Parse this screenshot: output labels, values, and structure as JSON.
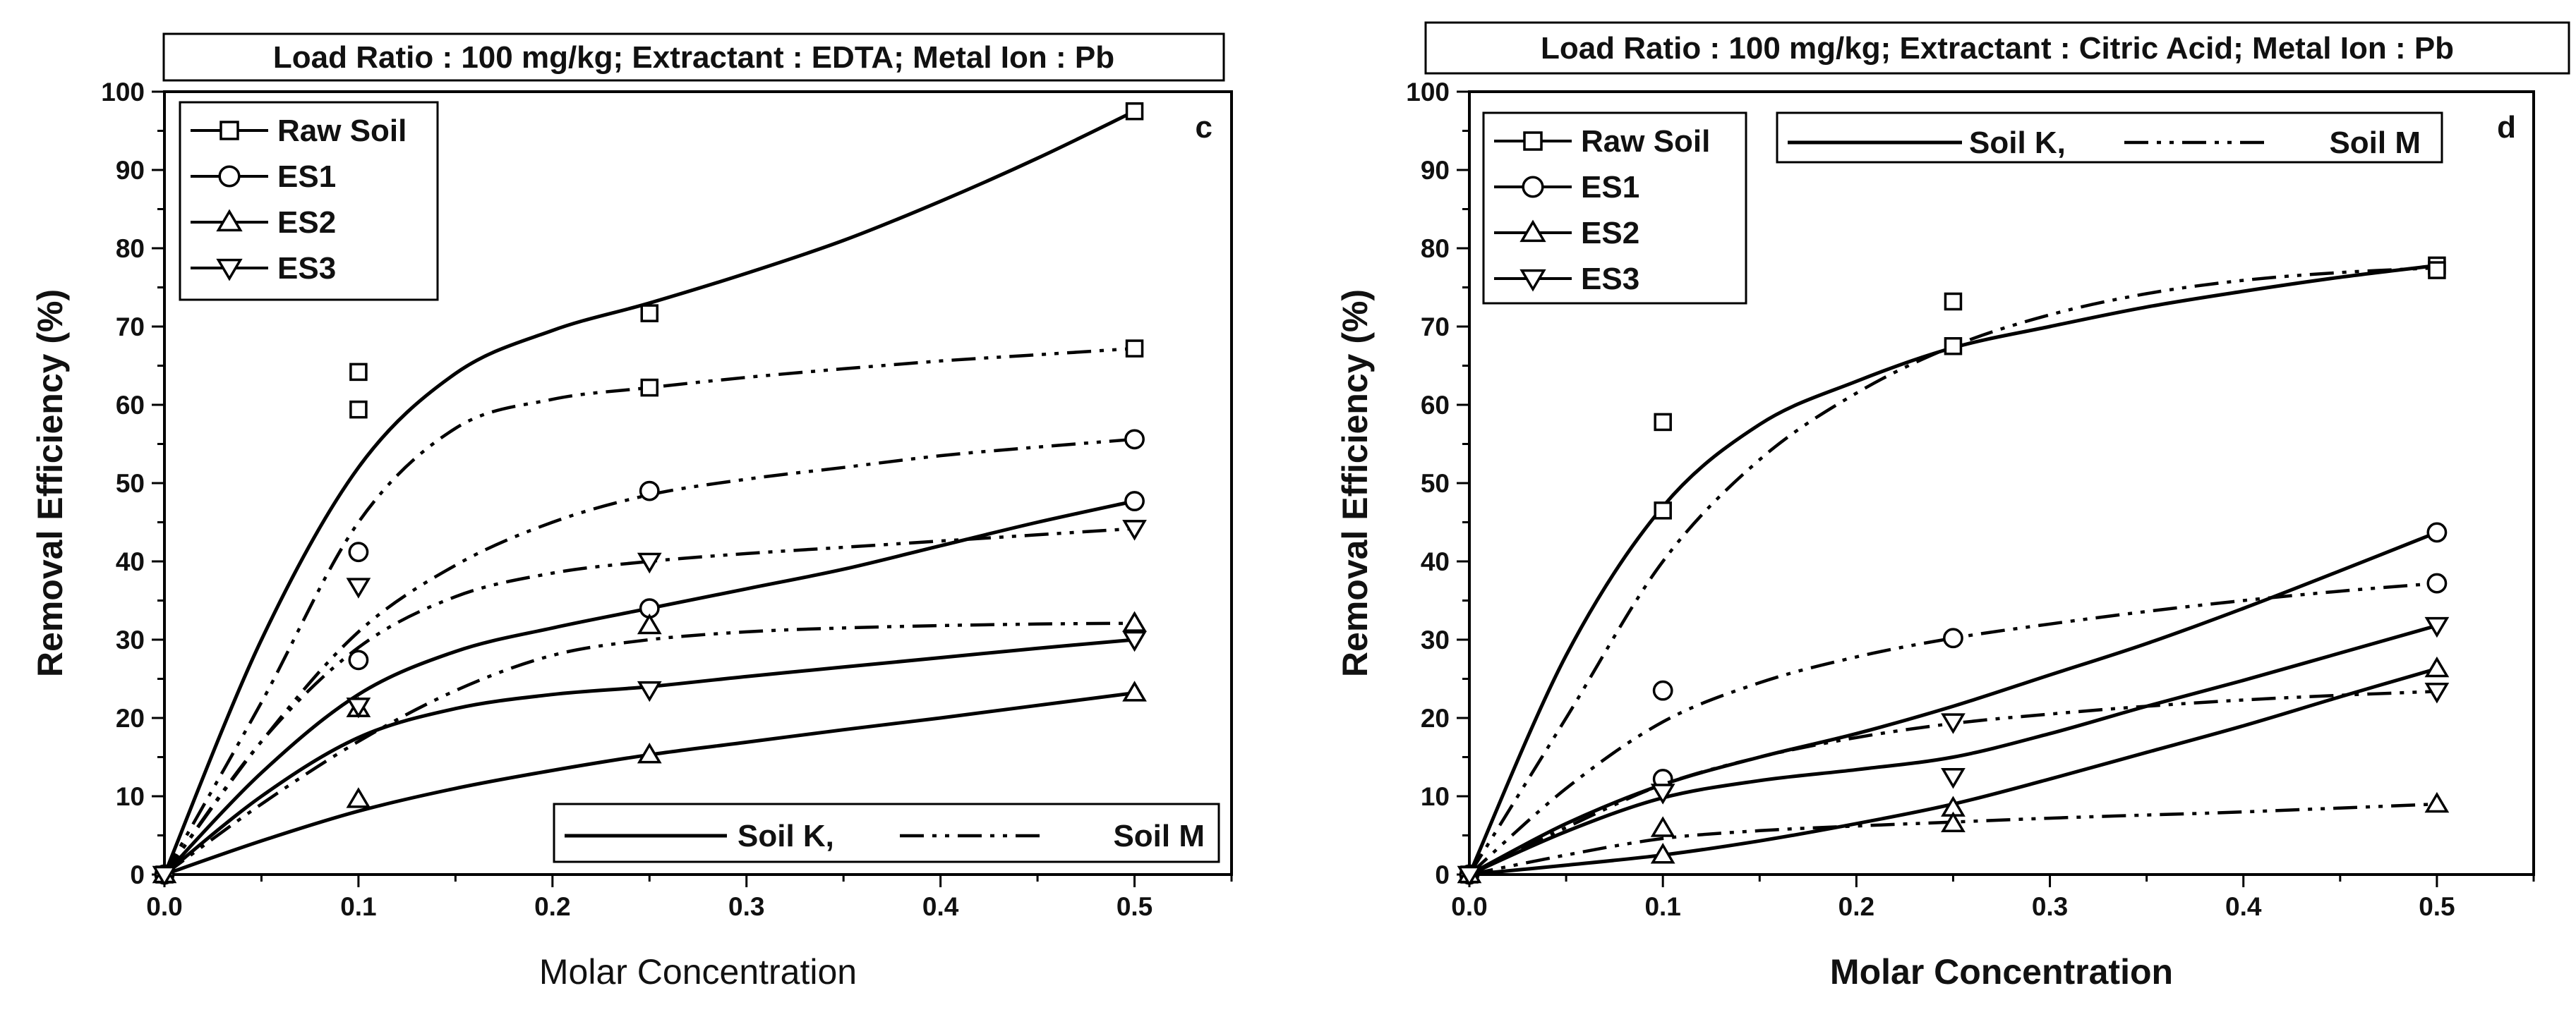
{
  "chart_data": [
    {
      "type": "scatter",
      "panel_label": "c",
      "title": "Load Ratio : 100 mg/kg; Extractant : EDTA; Metal Ion : Pb",
      "xlabel": "Molar Concentration",
      "ylabel": "Removal Efficiency (%)",
      "xlim": [
        0.0,
        0.55
      ],
      "ylim": [
        0,
        100
      ],
      "xticks": [
        "0.0",
        "0.1",
        "0.2",
        "0.3",
        "0.4",
        "0.5"
      ],
      "yticks": [
        "0",
        "10",
        "20",
        "30",
        "40",
        "50",
        "60",
        "70",
        "80",
        "90",
        "100"
      ],
      "legend_markers": [
        "Raw Soil",
        "ES1",
        "ES2",
        "ES3"
      ],
      "legend_lines": [
        "Soil K,",
        "Soil M"
      ],
      "series": [
        {
          "name": "Raw Soil",
          "marker": "square",
          "points": [
            [
              0,
              0
            ],
            [
              0.1,
              64.2
            ],
            [
              0.1,
              59.4
            ],
            [
              0.25,
              71.7
            ],
            [
              0.25,
              62.2
            ],
            [
              0.5,
              97.5
            ],
            [
              0.5,
              67.2
            ]
          ],
          "fit_k": [
            [
              0,
              0
            ],
            [
              0.05,
              30
            ],
            [
              0.1,
              52
            ],
            [
              0.15,
              64
            ],
            [
              0.2,
              69.5
            ],
            [
              0.25,
              73
            ],
            [
              0.3,
              76.8
            ],
            [
              0.35,
              81
            ],
            [
              0.4,
              86
            ],
            [
              0.45,
              91.5
            ],
            [
              0.5,
              97.5
            ]
          ],
          "fit_m": [
            [
              0,
              0
            ],
            [
              0.05,
              22
            ],
            [
              0.1,
              45
            ],
            [
              0.15,
              57
            ],
            [
              0.2,
              60.7
            ],
            [
              0.25,
              62.2
            ],
            [
              0.3,
              63.5
            ],
            [
              0.35,
              64.6
            ],
            [
              0.4,
              65.6
            ],
            [
              0.45,
              66.4
            ],
            [
              0.5,
              67.2
            ]
          ]
        },
        {
          "name": "ES1",
          "marker": "circle",
          "points": [
            [
              0,
              0
            ],
            [
              0.1,
              41.2
            ],
            [
              0.1,
              27.4
            ],
            [
              0.25,
              34
            ],
            [
              0.25,
              49
            ],
            [
              0.5,
              47.7
            ],
            [
              0.5,
              55.6
            ]
          ],
          "fit_k": [
            [
              0,
              0
            ],
            [
              0.05,
              13
            ],
            [
              0.1,
              23
            ],
            [
              0.15,
              28.5
            ],
            [
              0.2,
              31.5
            ],
            [
              0.25,
              34
            ],
            [
              0.3,
              36.5
            ],
            [
              0.35,
              39
            ],
            [
              0.4,
              42
            ],
            [
              0.45,
              45
            ],
            [
              0.5,
              47.7
            ]
          ],
          "fit_m": [
            [
              0,
              0
            ],
            [
              0.05,
              17
            ],
            [
              0.1,
              31
            ],
            [
              0.15,
              39.5
            ],
            [
              0.2,
              45
            ],
            [
              0.25,
              48.5
            ],
            [
              0.3,
              50.5
            ],
            [
              0.35,
              52
            ],
            [
              0.4,
              53.5
            ],
            [
              0.45,
              54.6
            ],
            [
              0.5,
              55.6
            ]
          ]
        },
        {
          "name": "ES2",
          "marker": "triangle-up",
          "points": [
            [
              0,
              0
            ],
            [
              0.1,
              21.2
            ],
            [
              0.1,
              9.6
            ],
            [
              0.25,
              15.3
            ],
            [
              0.25,
              31.8
            ],
            [
              0.5,
              23.2
            ],
            [
              0.5,
              32.1
            ]
          ],
          "fit_k": [
            [
              0,
              0
            ],
            [
              0.05,
              4.3
            ],
            [
              0.1,
              8.1
            ],
            [
              0.15,
              11
            ],
            [
              0.2,
              13.3
            ],
            [
              0.25,
              15.3
            ],
            [
              0.3,
              16.9
            ],
            [
              0.35,
              18.5
            ],
            [
              0.4,
              20
            ],
            [
              0.45,
              21.6
            ],
            [
              0.5,
              23.2
            ]
          ],
          "fit_m": [
            [
              0,
              0
            ],
            [
              0.05,
              9
            ],
            [
              0.1,
              17
            ],
            [
              0.15,
              23.5
            ],
            [
              0.2,
              28
            ],
            [
              0.25,
              30
            ],
            [
              0.3,
              31
            ],
            [
              0.35,
              31.5
            ],
            [
              0.4,
              31.8
            ],
            [
              0.45,
              32
            ],
            [
              0.5,
              32.1
            ]
          ]
        },
        {
          "name": "ES3",
          "marker": "triangle-down",
          "points": [
            [
              0,
              0
            ],
            [
              0.1,
              36.8
            ],
            [
              0.1,
              21.5
            ],
            [
              0.25,
              23.6
            ],
            [
              0.25,
              40
            ],
            [
              0.5,
              30
            ],
            [
              0.5,
              44.2
            ]
          ],
          "fit_k": [
            [
              0,
              0
            ],
            [
              0.05,
              10
            ],
            [
              0.1,
              17.5
            ],
            [
              0.15,
              21.2
            ],
            [
              0.2,
              23
            ],
            [
              0.25,
              24
            ],
            [
              0.3,
              25.3
            ],
            [
              0.35,
              26.5
            ],
            [
              0.4,
              27.7
            ],
            [
              0.45,
              28.9
            ],
            [
              0.5,
              30
            ]
          ],
          "fit_m": [
            [
              0,
              0
            ],
            [
              0.05,
              17
            ],
            [
              0.1,
              29
            ],
            [
              0.15,
              35.5
            ],
            [
              0.2,
              38.5
            ],
            [
              0.25,
              40
            ],
            [
              0.3,
              41
            ],
            [
              0.35,
              41.8
            ],
            [
              0.4,
              42.6
            ],
            [
              0.45,
              43.4
            ],
            [
              0.5,
              44.2
            ]
          ]
        }
      ]
    },
    {
      "type": "scatter",
      "panel_label": "d",
      "title": "Load Ratio : 100 mg/kg; Extractant : Citric Acid; Metal Ion : Pb",
      "xlabel": "Molar Concentration",
      "ylabel": "Removal Efficiency (%)",
      "xlim": [
        0.0,
        0.55
      ],
      "ylim": [
        0,
        100
      ],
      "xticks": [
        "0.0",
        "0.1",
        "0.2",
        "0.3",
        "0.4",
        "0.5"
      ],
      "yticks": [
        "0",
        "10",
        "20",
        "30",
        "40",
        "50",
        "60",
        "70",
        "80",
        "90",
        "100"
      ],
      "legend_markers": [
        "Raw Soil",
        "ES1",
        "ES2",
        "ES3"
      ],
      "legend_lines": [
        "Soil K,",
        "Soil M"
      ],
      "series": [
        {
          "name": "Raw Soil",
          "marker": "square",
          "points": [
            [
              0,
              0
            ],
            [
              0.1,
              57.8
            ],
            [
              0.1,
              46.5
            ],
            [
              0.25,
              73.2
            ],
            [
              0.25,
              67.5
            ],
            [
              0.5,
              77.8
            ],
            [
              0.5,
              77.2
            ]
          ],
          "fit_k": [
            [
              0,
              0
            ],
            [
              0.05,
              28
            ],
            [
              0.1,
              47
            ],
            [
              0.15,
              57.5
            ],
            [
              0.2,
              63
            ],
            [
              0.25,
              67.3
            ],
            [
              0.3,
              70
            ],
            [
              0.35,
              72.5
            ],
            [
              0.4,
              74.5
            ],
            [
              0.45,
              76.3
            ],
            [
              0.5,
              77.8
            ]
          ],
          "fit_m": [
            [
              0,
              0
            ],
            [
              0.05,
              20
            ],
            [
              0.1,
              40
            ],
            [
              0.15,
              53
            ],
            [
              0.2,
              61.5
            ],
            [
              0.25,
              67.5
            ],
            [
              0.3,
              71.5
            ],
            [
              0.35,
              74.2
            ],
            [
              0.4,
              75.9
            ],
            [
              0.45,
              76.9
            ],
            [
              0.5,
              77.5
            ]
          ]
        },
        {
          "name": "ES1",
          "marker": "circle",
          "points": [
            [
              0,
              0
            ],
            [
              0.1,
              12.2
            ],
            [
              0.1,
              23.5
            ],
            [
              0.25,
              30.2
            ],
            [
              0.5,
              43.7
            ],
            [
              0.5,
              37.2
            ]
          ],
          "fit_k": [
            [
              0,
              0
            ],
            [
              0.05,
              6.5
            ],
            [
              0.1,
              11.5
            ],
            [
              0.15,
              15
            ],
            [
              0.2,
              18
            ],
            [
              0.25,
              21.5
            ],
            [
              0.3,
              25.5
            ],
            [
              0.35,
              29.5
            ],
            [
              0.4,
              34
            ],
            [
              0.45,
              38.8
            ],
            [
              0.5,
              43.7
            ]
          ],
          "fit_m": [
            [
              0,
              0
            ],
            [
              0.05,
              11
            ],
            [
              0.1,
              19.5
            ],
            [
              0.15,
              24.5
            ],
            [
              0.2,
              27.8
            ],
            [
              0.25,
              30.2
            ],
            [
              0.3,
              32
            ],
            [
              0.35,
              33.6
            ],
            [
              0.4,
              35
            ],
            [
              0.45,
              36.2
            ],
            [
              0.5,
              37.2
            ]
          ]
        },
        {
          "name": "ES2",
          "marker": "triangle-up",
          "points": [
            [
              0,
              0
            ],
            [
              0.1,
              2.5
            ],
            [
              0.1,
              5.9
            ],
            [
              0.25,
              8.5
            ],
            [
              0.25,
              6.5
            ],
            [
              0.5,
              26.3
            ],
            [
              0.5,
              9
            ]
          ],
          "fit_k": [
            [
              0,
              0
            ],
            [
              0.05,
              1.2
            ],
            [
              0.1,
              2.5
            ],
            [
              0.15,
              4.3
            ],
            [
              0.2,
              6.5
            ],
            [
              0.25,
              9
            ],
            [
              0.3,
              12.2
            ],
            [
              0.35,
              15.6
            ],
            [
              0.4,
              19
            ],
            [
              0.45,
              22.7
            ],
            [
              0.5,
              26.3
            ]
          ],
          "fit_m": [
            [
              0,
              0
            ],
            [
              0.05,
              2.5
            ],
            [
              0.1,
              4.6
            ],
            [
              0.15,
              5.6
            ],
            [
              0.2,
              6.2
            ],
            [
              0.25,
              6.7
            ],
            [
              0.3,
              7.2
            ],
            [
              0.35,
              7.6
            ],
            [
              0.4,
              8
            ],
            [
              0.45,
              8.5
            ],
            [
              0.5,
              9
            ]
          ]
        },
        {
          "name": "ES3",
          "marker": "triangle-down",
          "points": [
            [
              0,
              0
            ],
            [
              0.1,
              10.5
            ],
            [
              0.25,
              19.5
            ],
            [
              0.25,
              12.5
            ],
            [
              0.5,
              31.8
            ],
            [
              0.5,
              23.4
            ]
          ],
          "fit_k": [
            [
              0,
              0
            ],
            [
              0.05,
              5.5
            ],
            [
              0.1,
              9.8
            ],
            [
              0.15,
              12
            ],
            [
              0.2,
              13.4
            ],
            [
              0.25,
              15
            ],
            [
              0.3,
              18
            ],
            [
              0.35,
              21.5
            ],
            [
              0.4,
              24.8
            ],
            [
              0.45,
              28.3
            ],
            [
              0.5,
              31.8
            ]
          ],
          "fit_m": [
            [
              0,
              0
            ],
            [
              0.05,
              6
            ],
            [
              0.1,
              11.5
            ],
            [
              0.15,
              15
            ],
            [
              0.2,
              17.5
            ],
            [
              0.25,
              19.3
            ],
            [
              0.3,
              20.5
            ],
            [
              0.35,
              21.5
            ],
            [
              0.4,
              22.3
            ],
            [
              0.45,
              22.9
            ],
            [
              0.5,
              23.4
            ]
          ]
        }
      ]
    }
  ]
}
